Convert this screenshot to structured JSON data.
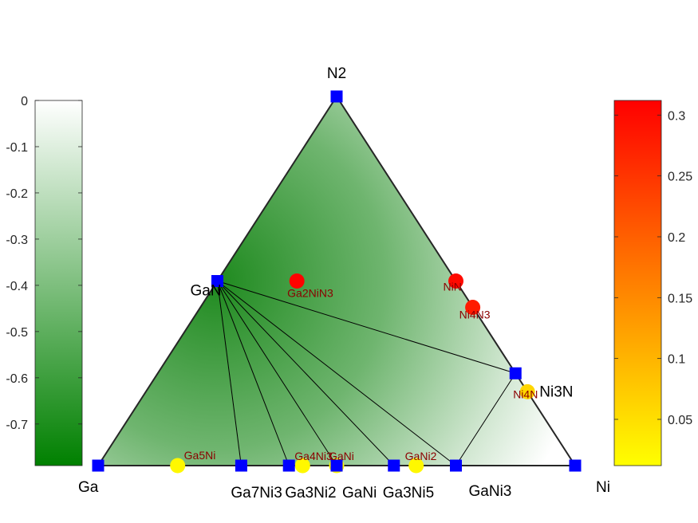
{
  "chart_data": {
    "type": "scatter",
    "subtype": "ternary-phase-diagram",
    "vertices": [
      "Ga",
      "N2",
      "Ni"
    ],
    "left_colorbar": {
      "ticks": [
        0,
        -0.1,
        -0.2,
        -0.3,
        -0.4,
        -0.5,
        -0.6,
        -0.7
      ],
      "range": [
        -0.79,
        0
      ],
      "colors": [
        "#008000",
        "#ffffff"
      ]
    },
    "right_colorbar": {
      "ticks": [
        0.05,
        0.1,
        0.15,
        0.2,
        0.25,
        0.3
      ],
      "range": [
        0.012,
        0.312
      ],
      "colors": [
        "#ffff00",
        "#ff0000"
      ]
    },
    "stable_phases": [
      {
        "name": "N2",
        "fNi": 0,
        "fN": 1,
        "energy": 0
      },
      {
        "name": "GaN",
        "fNi": 0,
        "fN": 0.5,
        "energy": -0.79
      },
      {
        "name": "Ni3N",
        "fNi": 0.75,
        "fN": 0.25,
        "energy": -0.08
      },
      {
        "name": "Ga",
        "fNi": 0,
        "fN": 0,
        "energy": 0
      },
      {
        "name": "Ni",
        "fNi": 1,
        "fN": 0,
        "energy": 0
      },
      {
        "name": "Ga7Ni3",
        "fNi": 0.3,
        "fN": 0,
        "energy": -0.3
      },
      {
        "name": "Ga3Ni2",
        "fNi": 0.4,
        "fN": 0,
        "energy": -0.38
      },
      {
        "name": "GaNi",
        "fNi": 0.5,
        "fN": 0,
        "energy": -0.43
      },
      {
        "name": "Ga3Ni5",
        "fNi": 0.62,
        "fN": 0,
        "energy": -0.38
      },
      {
        "name": "GaNi3",
        "fNi": 0.75,
        "fN": 0,
        "energy": -0.3
      }
    ],
    "unstable_phases": [
      {
        "name": "Ga2NiN3",
        "fNi": 0.1667,
        "fN": 0.5,
        "e_above_hull": 0.31
      },
      {
        "name": "NiN",
        "fNi": 0.5,
        "fN": 0.5,
        "e_above_hull": 0.3
      },
      {
        "name": "Ni4N3",
        "fNi": 0.571,
        "fN": 0.4286,
        "e_above_hull": 0.28
      },
      {
        "name": "Ni4N",
        "fNi": 0.8,
        "fN": 0.2,
        "e_above_hull": 0.06
      },
      {
        "name": "Ga5Ni",
        "fNi": 0.1667,
        "fN": 0,
        "e_above_hull": 0.02
      },
      {
        "name": "Ga4Ni3",
        "fNi": 0.4286,
        "fN": 0,
        "e_above_hull": 0.02
      },
      {
        "name": "GaNi",
        "fNi": 0.5,
        "fN": 0,
        "e_above_hull": 0.02
      },
      {
        "name": "GaNi2",
        "fNi": 0.6667,
        "fN": 0,
        "e_above_hull": 0.02
      }
    ],
    "tie_lines": [
      [
        "GaN",
        "Ga7Ni3"
      ],
      [
        "GaN",
        "Ga3Ni2"
      ],
      [
        "GaN",
        "GaNi"
      ],
      [
        "GaN",
        "Ga3Ni5"
      ],
      [
        "GaN",
        "GaNi3"
      ],
      [
        "GaN",
        "Ni3N"
      ],
      [
        "Ni3N",
        "GaNi3"
      ]
    ]
  }
}
